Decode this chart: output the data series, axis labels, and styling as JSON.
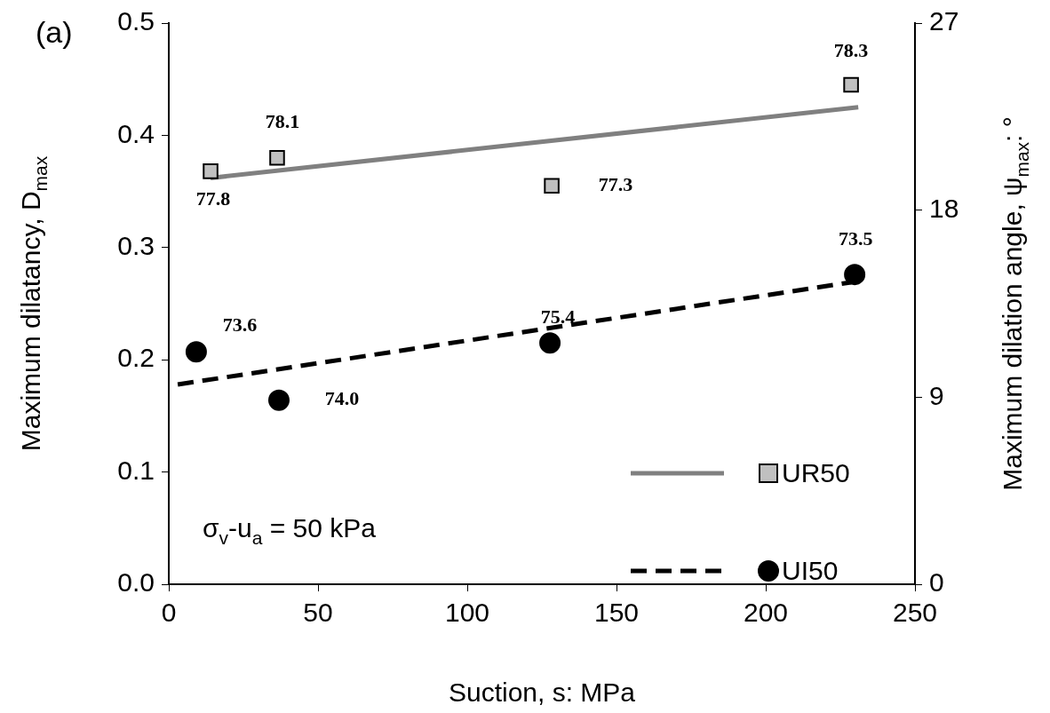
{
  "chart_data": {
    "type": "scatter",
    "xlabel": "Suction, s: MPa",
    "ylabel": "Maximum dilatancy, D$_{max}$",
    "y2label": "Maximum dilation angle, ψ$_{max}$: °",
    "xlim": [
      0,
      250
    ],
    "xticks": [
      0,
      50,
      100,
      150,
      200,
      250
    ],
    "ylim": [
      0,
      0.5
    ],
    "yticks": [
      {
        "value": 0,
        "label": "0.0"
      },
      {
        "value": 0.1,
        "label": "0.1"
      },
      {
        "value": 0.2,
        "label": "0.2"
      },
      {
        "value": 0.3,
        "label": "0.3"
      },
      {
        "value": 0.4,
        "label": "0.4"
      },
      {
        "value": 0.5,
        "label": "0.5"
      }
    ],
    "y2lim": [
      0,
      27
    ],
    "y2ticks": [
      0,
      9,
      18,
      27
    ],
    "grid": false,
    "legend": "bottom right",
    "series": [
      {
        "name": "UR50",
        "marker": "square",
        "color": "#c0c0c0",
        "x": [
          14,
          36.3,
          128.3,
          228.6
        ],
        "values": [
          0.368,
          0.38,
          0.355,
          0.445
        ]
      },
      {
        "name": "UI50",
        "marker": "circle",
        "color": "#000000",
        "x": [
          9.2,
          36.9,
          127.7,
          229.8
        ],
        "values": [
          0.207,
          0.164,
          0.215,
          0.276
        ]
      },
      {
        "type": "line",
        "marker": "none",
        "line_style": "solid",
        "color": "#808080",
        "x": [
          14,
          231
        ],
        "values": [
          0.362,
          0.425
        ]
      },
      {
        "type": "line",
        "marker": "none",
        "line_style": "dashed",
        "color": "#000000",
        "x": [
          3,
          228.6
        ],
        "values": [
          0.178,
          0.269
        ]
      }
    ],
    "annotations": [
      {
        "text": "77.8",
        "x": 14,
        "y": 0.368
      },
      {
        "text": "78.1",
        "x": 36.3,
        "y": 0.38
      },
      {
        "text": "77.3",
        "x": 128.3,
        "y": 0.355
      },
      {
        "text": "78.3",
        "x": 228.6,
        "y": 0.445
      },
      {
        "text": "73.6",
        "x": 9.2,
        "y": 0.207
      },
      {
        "text": "74.0",
        "x": 36.9,
        "y": 0.164
      },
      {
        "text": "75.4",
        "x": 127.7,
        "y": 0.215
      },
      {
        "text": "73.5",
        "x": 229.8,
        "y": 0.276
      },
      "(a)",
      "σ$_{v}$-u$_{a}$ = 50 kPa"
    ]
  }
}
